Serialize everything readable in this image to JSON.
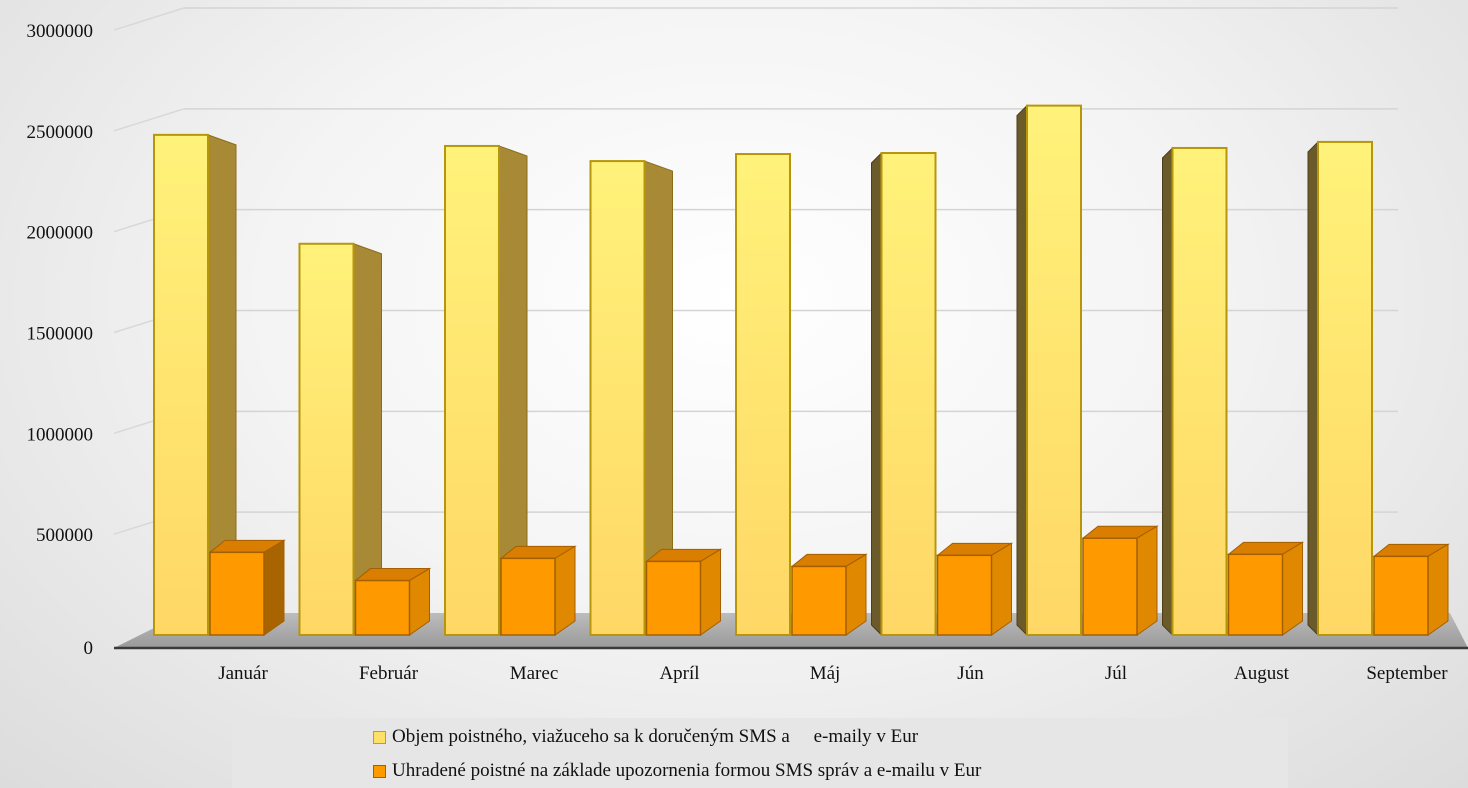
{
  "chart_data": {
    "type": "bar",
    "categories": [
      "Január",
      "Február",
      "Marec",
      "Apríl",
      "Máj",
      "Jún",
      "Júl",
      "August",
      "September"
    ],
    "series": [
      {
        "name": "Objem poistného, viažuceho sa k doručeným SMS a     e-maily v Eur",
        "values": [
          2480000,
          1940000,
          2425000,
          2350000,
          2385000,
          2390000,
          2625000,
          2415000,
          2445000
        ],
        "color": "#FFE066"
      },
      {
        "name": "Uhradené poistné na základe upozornenia formou SMS správ a e-mailu v Eur",
        "values": [
          410000,
          270000,
          380000,
          365000,
          340000,
          395000,
          480000,
          400000,
          390000
        ],
        "color": "#FF9900"
      }
    ],
    "yticks": [
      "0",
      "500000",
      "1000000",
      "1500000",
      "2000000",
      "2500000",
      "3000000"
    ],
    "ylim": [
      0,
      3000000
    ],
    "grid": true,
    "legend": "bottom",
    "style": "3d-clustered-column"
  }
}
